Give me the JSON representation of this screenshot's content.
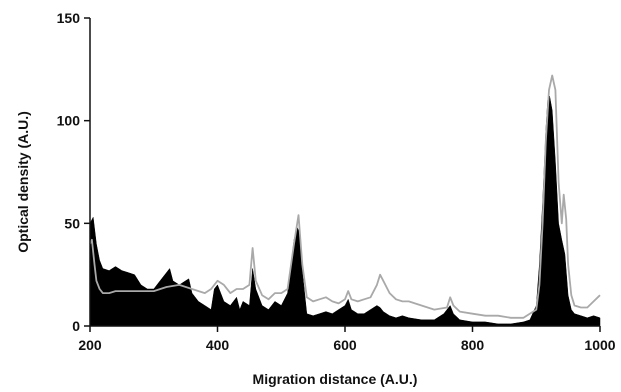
{
  "chart_data": {
    "type": "area",
    "xlabel": "Migration distance (A.U.)",
    "ylabel": "Optical density (A.U.)",
    "xlim": [
      200,
      1000
    ],
    "ylim": [
      0,
      150
    ],
    "x_ticks": [
      "200",
      "400",
      "600",
      "800",
      "1000"
    ],
    "y_ticks": [
      "0",
      "50",
      "100",
      "150"
    ],
    "grid": false,
    "legend": "none",
    "series": [
      {
        "style": "filled",
        "color": "#000000",
        "x": [
          200,
          205,
          210,
          215,
          220,
          230,
          240,
          250,
          260,
          270,
          280,
          290,
          300,
          310,
          320,
          325,
          330,
          340,
          350,
          355,
          360,
          370,
          380,
          390,
          395,
          400,
          405,
          410,
          420,
          430,
          435,
          440,
          450,
          455,
          460,
          470,
          480,
          490,
          500,
          510,
          520,
          525,
          528,
          532,
          540,
          550,
          560,
          570,
          580,
          590,
          600,
          605,
          610,
          620,
          630,
          640,
          650,
          655,
          660,
          670,
          680,
          690,
          700,
          720,
          740,
          755,
          765,
          770,
          780,
          800,
          820,
          840,
          860,
          880,
          890,
          900,
          905,
          910,
          915,
          918,
          921,
          925,
          930,
          935,
          940,
          945,
          950,
          955,
          960,
          970,
          980,
          990,
          1000
        ],
        "y": [
          50,
          53,
          40,
          32,
          28,
          27,
          29,
          27,
          26,
          25,
          20,
          18,
          18,
          22,
          26,
          28,
          22,
          20,
          22,
          23,
          16,
          12,
          10,
          8,
          18,
          20,
          16,
          12,
          10,
          14,
          8,
          12,
          10,
          28,
          18,
          10,
          8,
          12,
          10,
          16,
          42,
          48,
          46,
          30,
          6,
          5,
          6,
          7,
          6,
          8,
          10,
          13,
          8,
          6,
          6,
          8,
          10,
          9,
          7,
          5,
          4,
          5,
          4,
          3,
          3,
          6,
          10,
          6,
          3,
          2,
          2,
          1,
          1,
          2,
          3,
          10,
          30,
          60,
          95,
          110,
          112,
          105,
          80,
          50,
          42,
          35,
          15,
          8,
          6,
          5,
          4,
          5,
          4
        ]
      },
      {
        "style": "line",
        "color": "#a9a9a9",
        "x": [
          200,
          203,
          207,
          210,
          215,
          220,
          230,
          240,
          260,
          280,
          300,
          320,
          340,
          360,
          380,
          390,
          400,
          410,
          420,
          430,
          440,
          450,
          455,
          460,
          470,
          480,
          490,
          500,
          510,
          520,
          527,
          533,
          540,
          550,
          560,
          570,
          580,
          590,
          600,
          605,
          610,
          620,
          630,
          640,
          650,
          655,
          660,
          670,
          680,
          690,
          700,
          720,
          740,
          760,
          765,
          770,
          780,
          800,
          820,
          840,
          860,
          880,
          900,
          905,
          910,
          915,
          920,
          925,
          930,
          935,
          940,
          943,
          947,
          950,
          955,
          960,
          970,
          980,
          990,
          1000
        ],
        "y": [
          40,
          42,
          30,
          22,
          18,
          16,
          16,
          17,
          17,
          17,
          17,
          19,
          20,
          18,
          16,
          18,
          22,
          20,
          16,
          18,
          18,
          20,
          38,
          22,
          15,
          13,
          16,
          16,
          18,
          40,
          54,
          30,
          14,
          12,
          13,
          14,
          12,
          11,
          13,
          17,
          13,
          12,
          13,
          14,
          20,
          25,
          22,
          16,
          13,
          12,
          12,
          10,
          8,
          9,
          14,
          10,
          7,
          6,
          5,
          5,
          4,
          4,
          8,
          20,
          50,
          90,
          115,
          122,
          115,
          70,
          50,
          64,
          52,
          30,
          15,
          10,
          9,
          9,
          12,
          15
        ]
      }
    ]
  }
}
